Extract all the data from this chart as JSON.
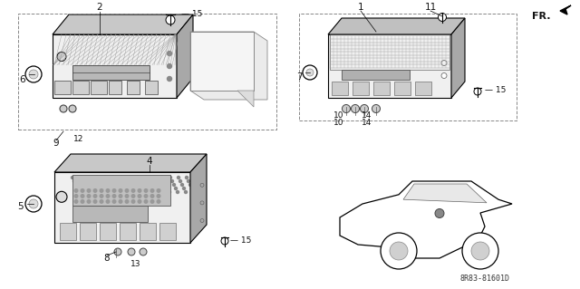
{
  "bg_color": "#ffffff",
  "line_color": "#000000",
  "fig_width": 6.4,
  "fig_height": 3.19,
  "dpi": 100,
  "diagram_code": "8R83-81601D",
  "fr_label": "FR.",
  "gray_top": "#c8c8c8",
  "gray_side": "#a8a8a8",
  "gray_face": "#e0e0e0",
  "gray_hatch": "#d8d8d8",
  "gray_slot": "#b0b0b0"
}
